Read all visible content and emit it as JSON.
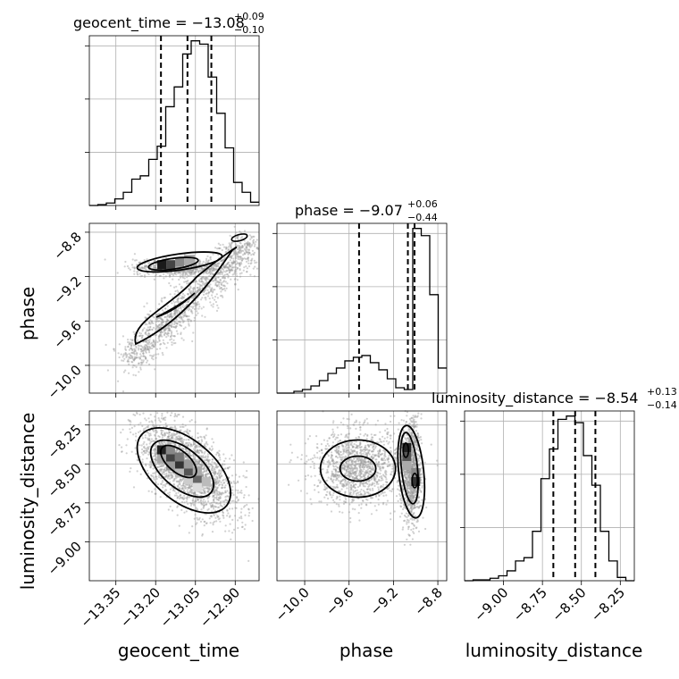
{
  "chart_data": {
    "type": "corner",
    "parameters": [
      {
        "key": "geocent_time",
        "label": "geocent_time",
        "title_main": "geocent_time = −13.08",
        "title_sup": "+0.09",
        "title_sub": "−0.10",
        "range": [
          -13.45,
          -12.81
        ],
        "ticks": [
          -13.35,
          -13.2,
          -13.05,
          -12.9
        ],
        "tick_labels": [
          "−13.35",
          "−13.20",
          "−13.05",
          "−12.90"
        ],
        "quantiles": [
          -13.18,
          -13.08,
          -12.99
        ],
        "hist_edges_from": -13.45,
        "hist_bin_width": 0.032,
        "hist_counts": [
          0,
          0.5,
          1.5,
          4,
          8,
          16,
          18,
          28,
          36,
          60,
          72,
          92,
          100,
          98,
          78,
          56,
          35,
          14,
          8,
          2
        ]
      },
      {
        "key": "phase",
        "label": "phase",
        "title_main": "phase = −9.07",
        "title_sup": "+0.06",
        "title_sub": "−0.44",
        "range": [
          -10.25,
          -8.72
        ],
        "ticks": [
          -10.0,
          -9.6,
          -9.2,
          -8.8
        ],
        "tick_labels": [
          "−10.0",
          "−9.6",
          "−9.2",
          "−8.8"
        ],
        "quantiles": [
          -9.51,
          -9.07,
          -9.01
        ],
        "hist_edges_from": -10.25,
        "hist_bin_width": 0.0765,
        "hist_counts": [
          0,
          0,
          1,
          2,
          4,
          7,
          11,
          14,
          18,
          20,
          21,
          17,
          13,
          8,
          3,
          2,
          92,
          88,
          55,
          14
        ]
      },
      {
        "key": "luminosity_distance",
        "label": "luminosity_distance",
        "title_main": "luminosity_distance = −8.54",
        "title_sup": "+0.13",
        "title_sub": "−0.14",
        "range": [
          -9.25,
          -8.16
        ],
        "ticks": [
          -9.0,
          -8.75,
          -8.5,
          -8.25
        ],
        "tick_labels": [
          "−9.00",
          "−8.75",
          "−8.50",
          "−8.25"
        ],
        "quantiles": [
          -8.68,
          -8.54,
          -8.41
        ],
        "hist_edges_from": -9.25,
        "hist_bin_width": 0.0545,
        "hist_counts": [
          0,
          0.5,
          0.5,
          1.5,
          3,
          6,
          12,
          14,
          30,
          62,
          80,
          98,
          100,
          96,
          76,
          58,
          30,
          12,
          2,
          0
        ]
      }
    ],
    "pair_panels": [
      {
        "x": "geocent_time",
        "y": "phase",
        "center_a": [
          -13.15,
          -9.12
        ],
        "center_b": [
          -13.05,
          -9.55
        ],
        "contour_levels": [
          "0.5",
          "1.0",
          "1.5"
        ],
        "peak_density_at": [
          -13.16,
          -9.1
        ]
      },
      {
        "x": "geocent_time",
        "y": "luminosity_distance",
        "center": [
          -13.08,
          -8.53
        ],
        "correlation": -0.55,
        "peak_density_at": [
          -13.11,
          -8.47
        ]
      },
      {
        "x": "phase",
        "y": "luminosity_distance",
        "center_a": [
          -9.52,
          -8.53
        ],
        "center_b": [
          -9.04,
          -8.55
        ],
        "peak_density_at": [
          -9.07,
          -8.49
        ]
      }
    ],
    "grid": true,
    "legend": "none"
  }
}
